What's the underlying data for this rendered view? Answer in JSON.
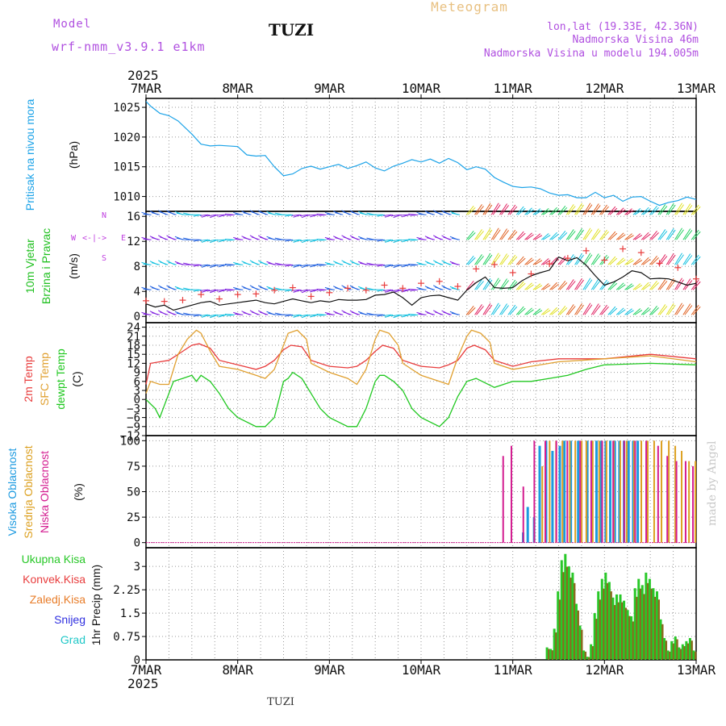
{
  "header": {
    "model_label": "Model",
    "model_name": "wrf-nmm_v3.9.1 e1km",
    "location": "TUZI",
    "title": "Meteogram",
    "coords": "lon,lat (19.33E, 42.36N)",
    "altitude": "Nadmorska Visina 46m",
    "model_altitude": "Nadmorska Visina u modelu 194.005m"
  },
  "footer": {
    "location": "TUZI",
    "watermark": "made by Angel"
  },
  "colors": {
    "pressure": "#1ca3e8",
    "temp2m": "#e83c3c",
    "sfc": "#e0a030",
    "dew": "#20c820",
    "high": "#1c9ae0",
    "mid": "#dca020",
    "low": "#d41c90",
    "precip_total": "#28c828",
    "precip_conv": "#e83c3c",
    "precip_strat": "#e87c28",
    "snow": "#3030e0",
    "hail": "#20c8c8",
    "wind_label": "#20c020",
    "wind_dir": "#c040e0"
  },
  "chart_data": [
    {
      "type": "line",
      "id": "pressure",
      "ylabel": [
        "Pritisak na nivou mora",
        "(hPa)"
      ],
      "year": "2025",
      "x_ticks": [
        "7MAR",
        "8MAR",
        "9MAR",
        "10MAR",
        "11MAR",
        "12MAR",
        "13MAR"
      ],
      "ylim": [
        1007.5,
        1026.5
      ],
      "y_ticks": [
        1010,
        1015,
        1020,
        1025
      ],
      "series": [
        {
          "x": [
            0,
            0.05,
            0.15,
            0.25,
            0.35,
            0.5,
            0.6,
            0.7,
            0.8,
            1.0,
            1.1,
            1.2,
            1.3,
            1.4,
            1.5,
            1.6,
            1.7,
            1.8,
            1.9,
            2.0,
            2.1,
            2.2,
            2.3,
            2.4,
            2.5,
            2.6,
            2.7,
            2.8,
            2.9,
            3.0,
            3.1,
            3.2,
            3.3,
            3.4,
            3.5,
            3.6,
            3.7,
            3.8,
            3.9,
            4.0,
            4.1,
            4.2,
            4.3,
            4.4,
            4.5,
            4.6,
            4.7,
            4.8,
            4.9,
            5.0,
            5.1,
            5.2,
            5.3,
            5.4,
            5.5,
            5.6,
            5.7,
            5.8,
            5.9,
            6.0
          ],
          "values": [
            1026,
            1025.2,
            1024,
            1023.6,
            1022.7,
            1020.5,
            1018.8,
            1018.5,
            1018.6,
            1018.4,
            1017,
            1016.8,
            1016.9,
            1015,
            1013.5,
            1013.8,
            1014.7,
            1015.1,
            1014.6,
            1015,
            1015.4,
            1014.7,
            1015.2,
            1015.8,
            1014.8,
            1014.3,
            1015.1,
            1015.6,
            1016.2,
            1015.8,
            1016.3,
            1015.6,
            1016.4,
            1015.7,
            1014.5,
            1015,
            1014.6,
            1013.2,
            1012.4,
            1011.7,
            1011.5,
            1011.6,
            1011.3,
            1010.6,
            1010.2,
            1010.3,
            1009.8,
            1009.8,
            1010.7,
            1009.8,
            1010.2,
            1009.2,
            1009.9,
            1010.0,
            1009.2,
            1008.5,
            1009.0,
            1009.3,
            1009.9,
            1009.5
          ]
        }
      ]
    },
    {
      "type": "line",
      "id": "wind",
      "ylabel": [
        "10m Vjetar",
        "Brzina i Pravac",
        "(m/s)"
      ],
      "dir_legend": [
        "W",
        "<-",
        "|",
        "->",
        "E",
        "N",
        "S"
      ],
      "ylim": [
        -1,
        16.8
      ],
      "y_ticks": [
        0,
        4,
        8,
        12,
        16
      ],
      "series": [
        {
          "name": "speed",
          "x": [
            0,
            0.1,
            0.2,
            0.3,
            0.4,
            0.5,
            0.6,
            0.7,
            0.8,
            0.9,
            1.0,
            1.1,
            1.2,
            1.3,
            1.4,
            1.5,
            1.6,
            1.7,
            1.8,
            1.9,
            2.0,
            2.1,
            2.2,
            2.3,
            2.4,
            2.5,
            2.6,
            2.7,
            2.8,
            2.9,
            3.0,
            3.1,
            3.2,
            3.3,
            3.4,
            3.5,
            3.6,
            3.7,
            3.8,
            3.9,
            4.0,
            4.1,
            4.2,
            4.3,
            4.4,
            4.5,
            4.6,
            4.7,
            4.8,
            4.9,
            5.0,
            5.1,
            5.2,
            5.3,
            5.4,
            5.5,
            5.6,
            5.7,
            5.8,
            5.9,
            6.0
          ],
          "values": [
            2,
            1.5,
            1.8,
            1.0,
            1.4,
            1.8,
            2.2,
            2.4,
            1.8,
            2.0,
            2.2,
            2.4,
            2.6,
            2.2,
            2.0,
            2.4,
            2.8,
            2.5,
            2.2,
            2.5,
            2.3,
            2.7,
            2.6,
            2.6,
            2.7,
            3.4,
            3.5,
            3.9,
            3.0,
            1.8,
            3.0,
            3.3,
            3.4,
            3.0,
            2.6,
            4.2,
            5.4,
            6.3,
            4.6,
            4.5,
            4.6,
            5.7,
            6.5,
            7.0,
            7.4,
            9.5,
            8.9,
            9.4,
            8.2,
            6.5,
            5.0,
            5.5,
            6.3,
            7.3,
            7.0,
            6.0,
            6.1,
            6.0,
            5.5,
            5.0,
            5.3
          ]
        },
        {
          "name": "gust",
          "x": [
            0,
            0.2,
            0.4,
            0.6,
            0.8,
            1.0,
            1.2,
            1.4,
            1.6,
            1.8,
            2.0,
            2.2,
            2.4,
            2.6,
            2.8,
            3.0,
            3.2,
            3.4,
            3.6,
            3.8,
            4.0,
            4.2,
            4.4,
            4.6,
            4.8,
            5.0,
            5.2,
            5.4,
            5.6,
            5.8,
            6.0
          ],
          "values": [
            2.5,
            2.4,
            2.6,
            3.5,
            2.8,
            3.5,
            3.6,
            4.2,
            4.6,
            3.2,
            3.8,
            4.5,
            4.2,
            5.0,
            4.5,
            5.3,
            5.6,
            4.8,
            7.6,
            8.3,
            7.0,
            6.8,
            8.4,
            9.3,
            10.5,
            9.0,
            10.8,
            10.2,
            8.5,
            7.8,
            6.0
          ]
        }
      ]
    },
    {
      "type": "line",
      "id": "temperature",
      "ylabel": [
        "2m Temp",
        "SFC Temp",
        "dewpt Temp",
        "(C)"
      ],
      "ylim": [
        -12,
        25.5
      ],
      "y_ticks": [
        -12,
        -9,
        -6,
        -3,
        0,
        3,
        6,
        9,
        12,
        15,
        18,
        21,
        24
      ],
      "series": [
        {
          "name": "2m Temp",
          "x": [
            0,
            0.05,
            0.15,
            0.25,
            0.4,
            0.5,
            0.58,
            0.7,
            0.8,
            1.0,
            1.2,
            1.3,
            1.4,
            1.5,
            1.58,
            1.7,
            1.8,
            2.0,
            2.2,
            2.3,
            2.4,
            2.5,
            2.58,
            2.7,
            2.8,
            3.0,
            3.2,
            3.3,
            3.4,
            3.5,
            3.58,
            3.7,
            3.8,
            3.9,
            4.0,
            4.2,
            4.5,
            5.0,
            5.5,
            6.0
          ],
          "values": [
            5,
            12,
            12.5,
            13,
            16,
            18,
            18.5,
            17,
            13,
            11.5,
            10,
            11,
            13,
            16.5,
            18,
            17.5,
            13,
            11,
            10.5,
            11,
            13,
            16,
            18,
            17,
            13,
            11,
            10.5,
            11.5,
            13,
            17,
            18,
            16.5,
            13,
            12,
            11,
            12.5,
            13.5,
            13.5,
            15,
            13.5
          ]
        },
        {
          "name": "SFC Temp",
          "x": [
            0,
            0.05,
            0.15,
            0.25,
            0.35,
            0.45,
            0.55,
            0.6,
            0.7,
            0.8,
            1.0,
            1.2,
            1.3,
            1.4,
            1.5,
            1.55,
            1.65,
            1.75,
            1.8,
            2.0,
            2.2,
            2.3,
            2.4,
            2.5,
            2.55,
            2.65,
            2.75,
            2.8,
            3.0,
            3.2,
            3.3,
            3.4,
            3.5,
            3.55,
            3.65,
            3.75,
            3.8,
            4.0,
            4.2,
            4.5,
            5.0,
            5.5,
            6.0
          ],
          "values": [
            2,
            6,
            5,
            5,
            15,
            20,
            23,
            22,
            16,
            11,
            10,
            8,
            7,
            10,
            18,
            22,
            23,
            20,
            12,
            9,
            7,
            5,
            10,
            20,
            23,
            22,
            18,
            12,
            8,
            6,
            5,
            14,
            21,
            23,
            22,
            19,
            12,
            10,
            11,
            12.5,
            13.5,
            14.5,
            12.5
          ]
        },
        {
          "name": "dewpt Temp",
          "x": [
            0,
            0.1,
            0.15,
            0.2,
            0.25,
            0.3,
            0.4,
            0.5,
            0.55,
            0.6,
            0.7,
            0.8,
            0.9,
            1.0,
            1.2,
            1.3,
            1.4,
            1.5,
            1.55,
            1.6,
            1.7,
            1.8,
            1.9,
            2.0,
            2.2,
            2.3,
            2.4,
            2.5,
            2.55,
            2.6,
            2.7,
            2.8,
            2.9,
            3.0,
            3.2,
            3.3,
            3.4,
            3.5,
            3.6,
            3.8,
            4.0,
            4.2,
            4.4,
            4.6,
            4.8,
            5.0,
            5.5,
            6.0
          ],
          "values": [
            0,
            -3,
            -6,
            -2,
            2,
            6,
            7,
            8,
            6,
            8,
            6,
            2,
            -3,
            -6,
            -9,
            -9,
            -6,
            6,
            7,
            9,
            7,
            2,
            -3,
            -6,
            -9,
            -9,
            -3,
            6,
            8,
            8,
            6,
            3,
            -3,
            -6,
            -9,
            -6,
            1,
            6,
            7,
            4,
            6,
            6,
            7,
            8,
            10,
            11.5,
            12,
            11.5
          ]
        }
      ]
    },
    {
      "type": "bar",
      "id": "cloud",
      "ylabel": [
        "Visoka Oblacnost",
        "Srednja Oblacnost",
        "Niska Oblacnost",
        "(%)"
      ],
      "ylim": [
        -5,
        105
      ],
      "y_ticks": [
        0,
        25,
        50,
        75,
        100
      ],
      "series": [
        {
          "name": "Visoka Oblacnost",
          "x": [
            4.1,
            4.15,
            4.22,
            4.28,
            4.35,
            4.42,
            4.5,
            4.55,
            4.62,
            4.7,
            4.8,
            4.85,
            4.9,
            4.95,
            5.0,
            5.05,
            5.1,
            5.15,
            5.2,
            5.25,
            5.3,
            5.35
          ],
          "values": [
            10,
            35,
            25,
            95,
            100,
            90,
            95,
            100,
            100,
            100,
            100,
            100,
            100,
            100,
            100,
            100,
            100,
            100,
            100,
            100,
            100,
            100
          ]
        },
        {
          "name": "Srednja Oblacnost",
          "x": [
            4.3,
            4.38,
            4.45,
            4.52,
            4.6,
            4.66,
            4.73,
            4.78,
            4.85,
            4.92,
            5.0,
            5.08,
            5.15,
            5.22,
            5.3,
            5.38,
            5.45,
            5.52,
            5.6,
            5.68,
            5.75,
            5.82,
            5.9,
            5.97
          ],
          "values": [
            75,
            100,
            100,
            100,
            100,
            100,
            100,
            100,
            100,
            100,
            100,
            100,
            100,
            100,
            100,
            100,
            100,
            100,
            100,
            100,
            95,
            90,
            80,
            80
          ]
        },
        {
          "name": "Niska Oblacnost",
          "x": [
            3.86,
            3.95,
            4.08,
            4.2,
            4.32,
            4.44,
            4.56,
            4.7,
            4.82,
            4.94,
            5.06,
            5.18,
            5.3,
            5.42,
            5.55,
            5.65,
            5.75,
            5.85,
            5.93
          ],
          "values": [
            85,
            95,
            55,
            100,
            100,
            100,
            100,
            100,
            100,
            100,
            100,
            100,
            100,
            100,
            95,
            85,
            80,
            80,
            75
          ]
        }
      ]
    },
    {
      "type": "bar",
      "id": "precip",
      "ylabel": [
        "1hr Precip (mm)"
      ],
      "legend": [
        "Ukupna Kisa",
        "Konvek.Kisa",
        "Zaledj.Kisa",
        "Snijeg",
        "Grad"
      ],
      "x_ticks": [
        "7MAR",
        "8MAR",
        "9MAR",
        "10MAR",
        "11MAR",
        "12MAR",
        "13MAR"
      ],
      "year": "2025",
      "ylim": [
        0,
        3.6
      ],
      "y_ticks": [
        0,
        0.75,
        1.5,
        2.25,
        3
      ],
      "series": [
        {
          "name": "Ukupna Kisa",
          "x": [
            4.36,
            4.4,
            4.44,
            4.48,
            4.52,
            4.56,
            4.6,
            4.64,
            4.68,
            4.72,
            4.76,
            4.8,
            4.84,
            4.88,
            4.92,
            4.96,
            5.0,
            5.04,
            5.08,
            5.12,
            5.16,
            5.2,
            5.24,
            5.28,
            5.32,
            5.36,
            5.4,
            5.44,
            5.48,
            5.52,
            5.56,
            5.6,
            5.64,
            5.68,
            5.72,
            5.76,
            5.8,
            5.84,
            5.88,
            5.92,
            5.96
          ],
          "values": [
            0.4,
            0.35,
            1.0,
            2.2,
            3.2,
            3.4,
            3.0,
            2.8,
            1.8,
            1.1,
            0.3,
            0.1,
            0.5,
            1.5,
            2.2,
            2.6,
            2.8,
            2.5,
            2.0,
            2.1,
            2.1,
            1.9,
            1.6,
            1.4,
            2.3,
            2.6,
            2.4,
            2.8,
            2.6,
            2.3,
            2.2,
            1.3,
            0.7,
            0.3,
            0.6,
            0.75,
            0.4,
            0.5,
            0.6,
            0.7,
            0.3
          ]
        }
      ]
    }
  ]
}
